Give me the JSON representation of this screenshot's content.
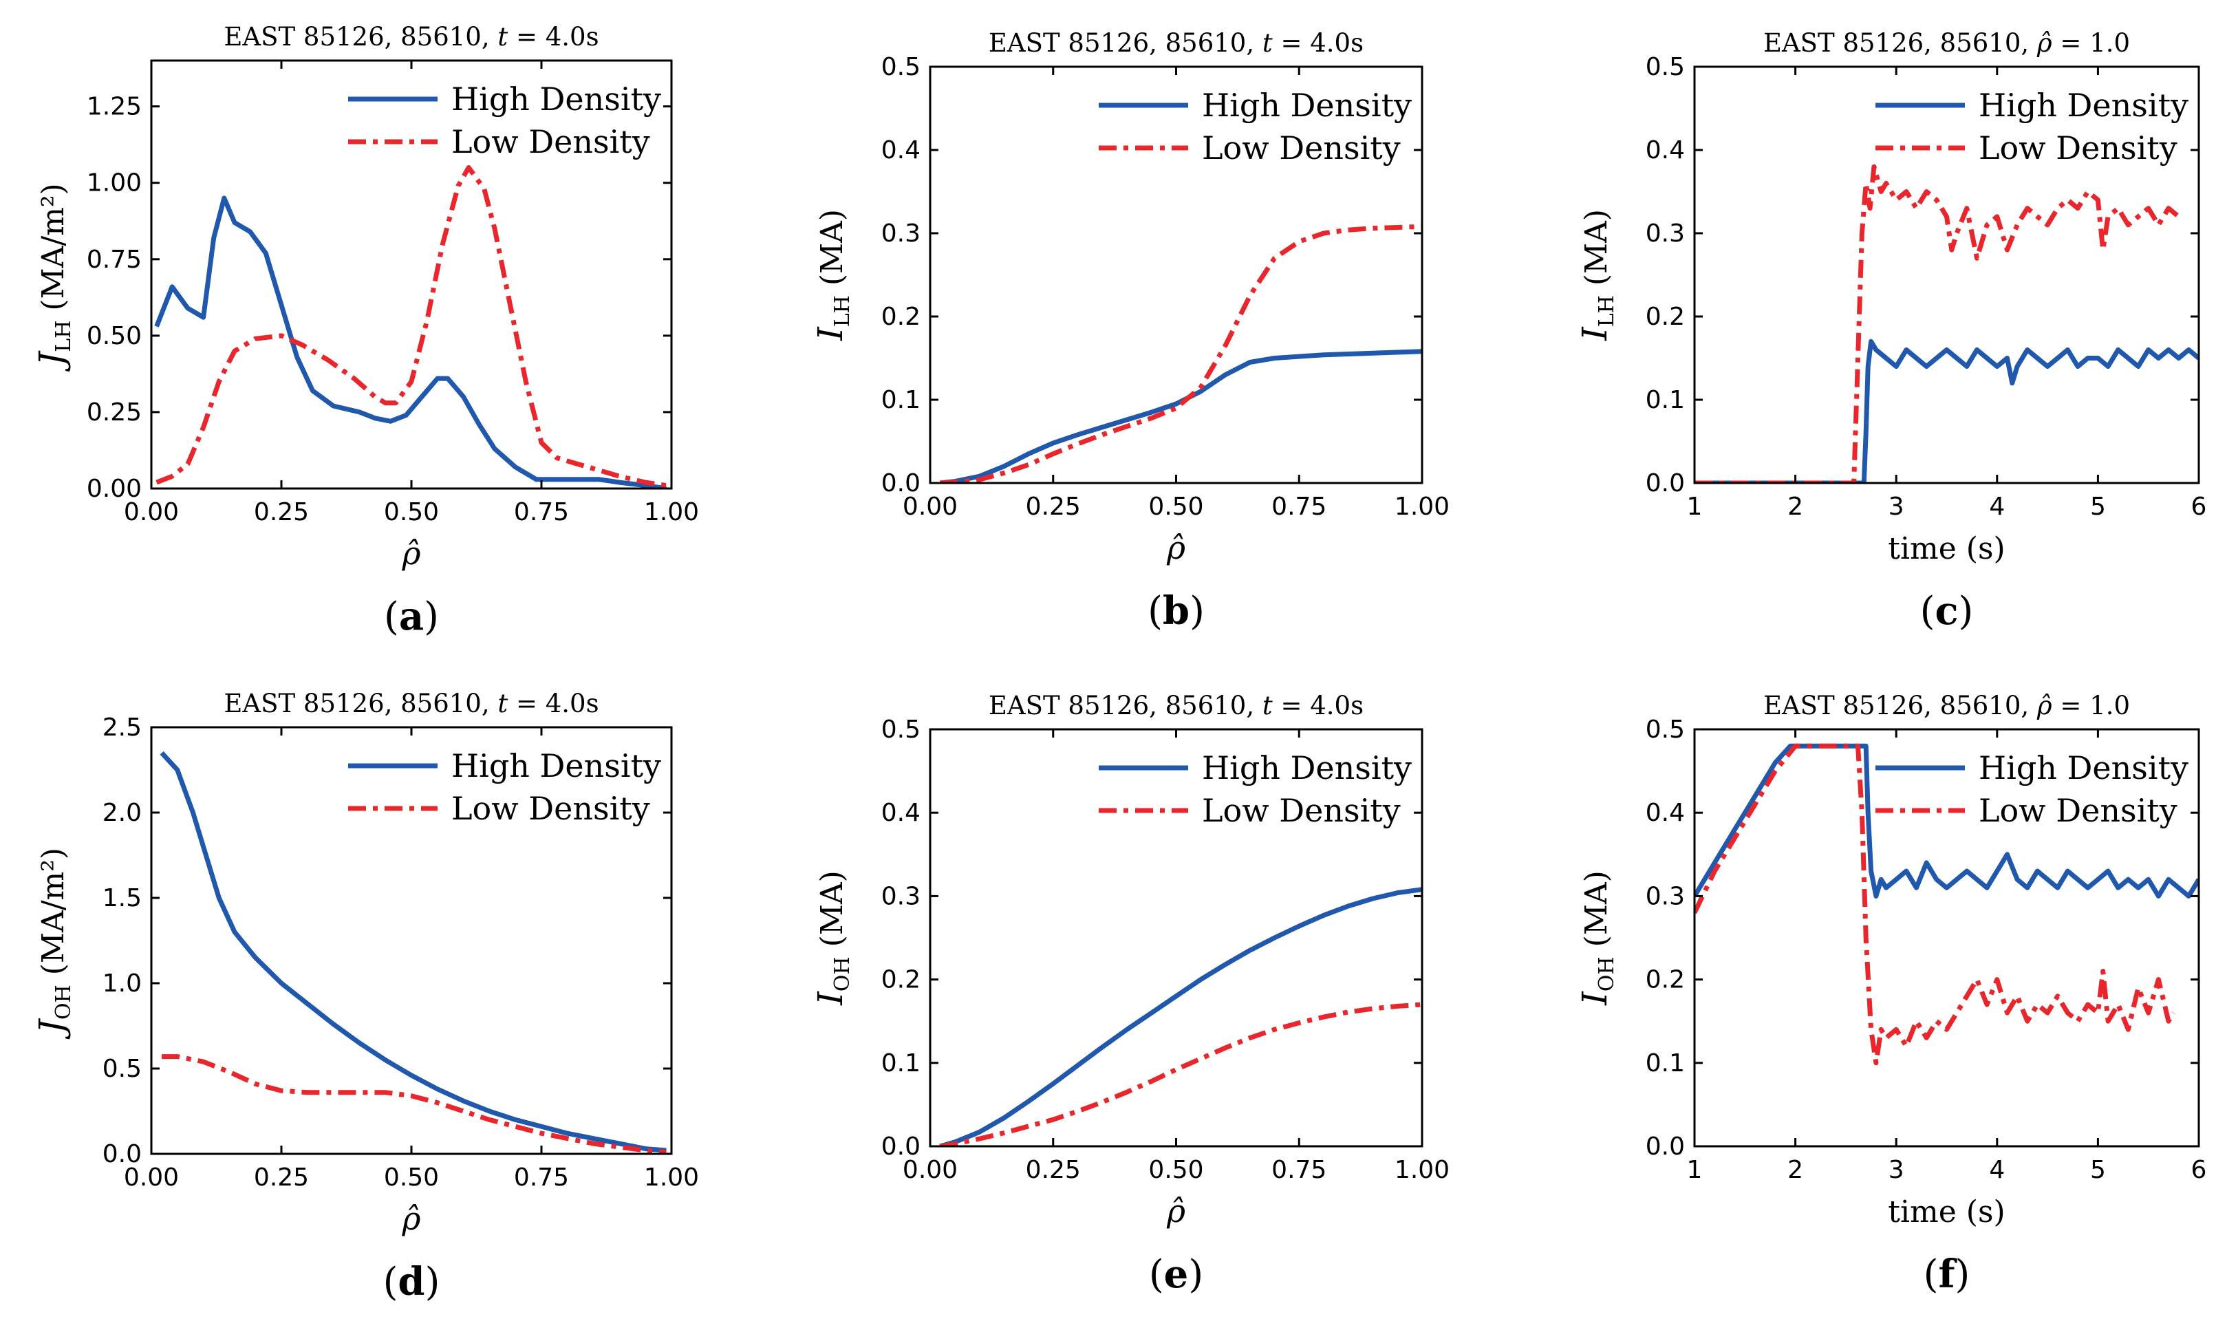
{
  "colors": {
    "high": "#1f58ac",
    "low": "#e8262c",
    "axis": "#000000"
  },
  "legend_labels": [
    "High Density",
    "Low Density"
  ],
  "chart_data": [
    {
      "id": "a",
      "type": "line",
      "panel_label": "a",
      "title_prefix": "EAST 85126, 85610, ",
      "title_var": "t",
      "title_suffix": " = 4.0s",
      "ylabel_main": "J",
      "ylabel_sub": "LH",
      "ylabel_unit": " (MA/m²)",
      "xlabel": "ρ̂",
      "xlim": [
        0,
        1
      ],
      "ylim": [
        0,
        1.4
      ],
      "xticks": [
        0,
        0.25,
        0.5,
        0.75,
        1.0
      ],
      "xtick_labels": [
        "0.00",
        "0.25",
        "0.50",
        "0.75",
        "1.00"
      ],
      "yticks": [
        0,
        0.25,
        0.5,
        0.75,
        1.0,
        1.25
      ],
      "ytick_labels": [
        "0.00",
        "0.25",
        "0.50",
        "0.75",
        "1.00",
        "1.25"
      ],
      "legend": "top-right",
      "series": [
        {
          "name": "High Density",
          "style": "solid",
          "x": [
            0.01,
            0.04,
            0.07,
            0.1,
            0.12,
            0.14,
            0.16,
            0.19,
            0.22,
            0.25,
            0.28,
            0.31,
            0.35,
            0.4,
            0.43,
            0.46,
            0.49,
            0.52,
            0.55,
            0.57,
            0.6,
            0.63,
            0.66,
            0.7,
            0.74,
            0.78,
            0.82,
            0.86,
            0.9,
            0.95,
            0.99
          ],
          "y": [
            0.53,
            0.66,
            0.59,
            0.56,
            0.82,
            0.95,
            0.87,
            0.84,
            0.77,
            0.6,
            0.43,
            0.32,
            0.27,
            0.25,
            0.23,
            0.22,
            0.24,
            0.3,
            0.36,
            0.36,
            0.3,
            0.21,
            0.13,
            0.07,
            0.03,
            0.03,
            0.03,
            0.03,
            0.02,
            0.01,
            0.0
          ]
        },
        {
          "name": "Low Density",
          "style": "dashdot",
          "x": [
            0.01,
            0.04,
            0.07,
            0.1,
            0.13,
            0.16,
            0.2,
            0.25,
            0.29,
            0.34,
            0.39,
            0.43,
            0.45,
            0.47,
            0.5,
            0.53,
            0.56,
            0.59,
            0.61,
            0.64,
            0.66,
            0.69,
            0.72,
            0.75,
            0.78,
            0.82,
            0.86,
            0.9,
            0.95,
            0.99
          ],
          "y": [
            0.02,
            0.04,
            0.08,
            0.2,
            0.35,
            0.45,
            0.49,
            0.5,
            0.47,
            0.42,
            0.36,
            0.3,
            0.28,
            0.28,
            0.35,
            0.55,
            0.8,
            0.99,
            1.05,
            0.98,
            0.85,
            0.6,
            0.35,
            0.15,
            0.1,
            0.08,
            0.06,
            0.04,
            0.02,
            0.01
          ]
        }
      ]
    },
    {
      "id": "b",
      "type": "line",
      "panel_label": "b",
      "title_prefix": "EAST 85126, 85610, ",
      "title_var": "t",
      "title_suffix": " = 4.0s",
      "ylabel_main": "I",
      "ylabel_sub": "LH",
      "ylabel_unit": " (MA)",
      "xlabel": "ρ̂",
      "xlim": [
        0,
        1
      ],
      "ylim": [
        0,
        0.5
      ],
      "xticks": [
        0,
        0.25,
        0.5,
        0.75,
        1.0
      ],
      "xtick_labels": [
        "0.00",
        "0.25",
        "0.50",
        "0.75",
        "1.00"
      ],
      "yticks": [
        0,
        0.1,
        0.2,
        0.3,
        0.4,
        0.5
      ],
      "ytick_labels": [
        "0.0",
        "0.1",
        "0.2",
        "0.3",
        "0.4",
        "0.5"
      ],
      "legend": "top-right",
      "series": [
        {
          "name": "High Density",
          "style": "solid",
          "x": [
            0.02,
            0.05,
            0.1,
            0.15,
            0.2,
            0.25,
            0.3,
            0.35,
            0.4,
            0.45,
            0.5,
            0.55,
            0.6,
            0.65,
            0.7,
            0.75,
            0.8,
            0.85,
            0.9,
            0.95,
            1.0
          ],
          "y": [
            0.0,
            0.002,
            0.008,
            0.02,
            0.035,
            0.048,
            0.058,
            0.067,
            0.076,
            0.085,
            0.095,
            0.11,
            0.13,
            0.145,
            0.15,
            0.152,
            0.154,
            0.155,
            0.156,
            0.157,
            0.158
          ]
        },
        {
          "name": "Low Density",
          "style": "dashdot",
          "x": [
            0.02,
            0.05,
            0.1,
            0.15,
            0.2,
            0.25,
            0.3,
            0.35,
            0.4,
            0.45,
            0.5,
            0.55,
            0.6,
            0.65,
            0.7,
            0.75,
            0.8,
            0.85,
            0.9,
            0.95,
            1.0
          ],
          "y": [
            0.0,
            0.001,
            0.004,
            0.012,
            0.022,
            0.035,
            0.047,
            0.058,
            0.068,
            0.078,
            0.09,
            0.115,
            0.165,
            0.225,
            0.27,
            0.29,
            0.3,
            0.304,
            0.306,
            0.307,
            0.308
          ]
        }
      ]
    },
    {
      "id": "c",
      "type": "line",
      "panel_label": "c",
      "title_prefix": "EAST 85126, 85610, ",
      "title_var": "ρ̂",
      "title_suffix": " = 1.0",
      "ylabel_main": "I",
      "ylabel_sub": "LH",
      "ylabel_unit": " (MA)",
      "xlabel": "time (s)",
      "xlim": [
        1,
        6
      ],
      "ylim": [
        0,
        0.5
      ],
      "xticks": [
        1,
        2,
        3,
        4,
        5,
        6
      ],
      "xtick_labels": [
        "1",
        "2",
        "3",
        "4",
        "5",
        "6"
      ],
      "yticks": [
        0,
        0.1,
        0.2,
        0.3,
        0.4,
        0.5
      ],
      "ytick_labels": [
        "0.0",
        "0.1",
        "0.2",
        "0.3",
        "0.4",
        "0.5"
      ],
      "legend": "top-right",
      "series": [
        {
          "name": "High Density",
          "style": "solid",
          "x": [
            1.0,
            2.68,
            2.7,
            2.72,
            2.75,
            2.8,
            2.9,
            3.0,
            3.1,
            3.2,
            3.3,
            3.4,
            3.5,
            3.6,
            3.7,
            3.8,
            3.9,
            4.0,
            4.1,
            4.15,
            4.2,
            4.3,
            4.4,
            4.5,
            4.6,
            4.7,
            4.8,
            4.9,
            5.0,
            5.1,
            5.2,
            5.3,
            5.4,
            5.5,
            5.6,
            5.7,
            5.8,
            5.9,
            6.0
          ],
          "y": [
            0.0,
            0.0,
            0.06,
            0.14,
            0.17,
            0.16,
            0.15,
            0.14,
            0.16,
            0.15,
            0.14,
            0.15,
            0.16,
            0.15,
            0.14,
            0.16,
            0.15,
            0.14,
            0.15,
            0.12,
            0.14,
            0.16,
            0.15,
            0.14,
            0.15,
            0.16,
            0.14,
            0.15,
            0.15,
            0.14,
            0.16,
            0.15,
            0.14,
            0.16,
            0.15,
            0.16,
            0.15,
            0.16,
            0.15
          ]
        },
        {
          "name": "Low Density",
          "style": "dashdot",
          "x": [
            1.0,
            2.58,
            2.62,
            2.66,
            2.7,
            2.74,
            2.78,
            2.85,
            2.9,
            3.0,
            3.1,
            3.2,
            3.3,
            3.4,
            3.5,
            3.55,
            3.6,
            3.7,
            3.8,
            3.9,
            4.0,
            4.1,
            4.2,
            4.3,
            4.4,
            4.5,
            4.6,
            4.7,
            4.8,
            4.9,
            5.0,
            5.05,
            5.1,
            5.2,
            5.3,
            5.4,
            5.5,
            5.6,
            5.7,
            5.8
          ],
          "y": [
            0.0,
            0.0,
            0.15,
            0.3,
            0.36,
            0.33,
            0.38,
            0.35,
            0.36,
            0.34,
            0.35,
            0.33,
            0.35,
            0.34,
            0.32,
            0.28,
            0.3,
            0.33,
            0.27,
            0.31,
            0.32,
            0.28,
            0.31,
            0.33,
            0.32,
            0.31,
            0.33,
            0.34,
            0.33,
            0.35,
            0.34,
            0.28,
            0.32,
            0.33,
            0.31,
            0.32,
            0.33,
            0.31,
            0.33,
            0.32
          ]
        }
      ]
    },
    {
      "id": "d",
      "type": "line",
      "panel_label": "d",
      "title_prefix": "EAST 85126, 85610, ",
      "title_var": "t",
      "title_suffix": " = 4.0s",
      "ylabel_main": "J",
      "ylabel_sub": "OH",
      "ylabel_unit": " (MA/m²)",
      "xlabel": "ρ̂",
      "xlim": [
        0,
        1
      ],
      "ylim": [
        0,
        2.5
      ],
      "xticks": [
        0,
        0.25,
        0.5,
        0.75,
        1.0
      ],
      "xtick_labels": [
        "0.00",
        "0.25",
        "0.50",
        "0.75",
        "1.00"
      ],
      "yticks": [
        0,
        0.5,
        1.0,
        1.5,
        2.0,
        2.5
      ],
      "ytick_labels": [
        "0.0",
        "0.5",
        "1.0",
        "1.5",
        "2.0",
        "2.5"
      ],
      "legend": "top-right",
      "series": [
        {
          "name": "High Density",
          "style": "solid",
          "x": [
            0.02,
            0.05,
            0.08,
            0.1,
            0.13,
            0.16,
            0.2,
            0.25,
            0.3,
            0.35,
            0.4,
            0.45,
            0.5,
            0.55,
            0.6,
            0.65,
            0.7,
            0.75,
            0.8,
            0.85,
            0.9,
            0.95,
            0.99
          ],
          "y": [
            2.35,
            2.25,
            2.0,
            1.8,
            1.5,
            1.3,
            1.15,
            1.0,
            0.88,
            0.76,
            0.65,
            0.55,
            0.46,
            0.38,
            0.31,
            0.25,
            0.2,
            0.16,
            0.12,
            0.09,
            0.06,
            0.03,
            0.02
          ]
        },
        {
          "name": "Low Density",
          "style": "dashdot",
          "x": [
            0.02,
            0.05,
            0.1,
            0.15,
            0.2,
            0.25,
            0.3,
            0.35,
            0.4,
            0.45,
            0.5,
            0.55,
            0.6,
            0.65,
            0.7,
            0.75,
            0.8,
            0.85,
            0.9,
            0.95,
            0.99
          ],
          "y": [
            0.57,
            0.57,
            0.54,
            0.48,
            0.41,
            0.37,
            0.36,
            0.36,
            0.36,
            0.36,
            0.34,
            0.3,
            0.25,
            0.2,
            0.16,
            0.12,
            0.09,
            0.06,
            0.04,
            0.02,
            0.01
          ]
        }
      ]
    },
    {
      "id": "e",
      "type": "line",
      "panel_label": "e",
      "title_prefix": "EAST 85126, 85610, ",
      "title_var": "t",
      "title_suffix": " = 4.0s",
      "ylabel_main": "I",
      "ylabel_sub": "OH",
      "ylabel_unit": " (MA)",
      "xlabel": "ρ̂",
      "xlim": [
        0,
        1
      ],
      "ylim": [
        0,
        0.5
      ],
      "xticks": [
        0,
        0.25,
        0.5,
        0.75,
        1.0
      ],
      "xtick_labels": [
        "0.00",
        "0.25",
        "0.50",
        "0.75",
        "1.00"
      ],
      "yticks": [
        0,
        0.1,
        0.2,
        0.3,
        0.4,
        0.5
      ],
      "ytick_labels": [
        "0.0",
        "0.1",
        "0.2",
        "0.3",
        "0.4",
        "0.5"
      ],
      "legend": "top-right",
      "series": [
        {
          "name": "High Density",
          "style": "solid",
          "x": [
            0.02,
            0.05,
            0.1,
            0.15,
            0.2,
            0.25,
            0.3,
            0.35,
            0.4,
            0.45,
            0.5,
            0.55,
            0.6,
            0.65,
            0.7,
            0.75,
            0.8,
            0.85,
            0.9,
            0.95,
            1.0
          ],
          "y": [
            0.0,
            0.005,
            0.017,
            0.034,
            0.054,
            0.075,
            0.097,
            0.119,
            0.14,
            0.16,
            0.18,
            0.2,
            0.218,
            0.235,
            0.25,
            0.264,
            0.277,
            0.288,
            0.297,
            0.304,
            0.308
          ]
        },
        {
          "name": "Low Density",
          "style": "dashdot",
          "x": [
            0.02,
            0.05,
            0.1,
            0.15,
            0.2,
            0.25,
            0.3,
            0.35,
            0.4,
            0.45,
            0.5,
            0.55,
            0.6,
            0.65,
            0.7,
            0.75,
            0.8,
            0.85,
            0.9,
            0.95,
            1.0
          ],
          "y": [
            0.0,
            0.003,
            0.009,
            0.016,
            0.024,
            0.032,
            0.042,
            0.053,
            0.065,
            0.078,
            0.092,
            0.105,
            0.118,
            0.13,
            0.14,
            0.148,
            0.155,
            0.161,
            0.165,
            0.168,
            0.17
          ]
        }
      ]
    },
    {
      "id": "f",
      "type": "line",
      "panel_label": "f",
      "title_prefix": "EAST 85126, 85610, ",
      "title_var": "ρ̂",
      "title_suffix": " = 1.0",
      "ylabel_main": "I",
      "ylabel_sub": "OH",
      "ylabel_unit": " (MA)",
      "xlabel": "time (s)",
      "xlim": [
        1,
        6
      ],
      "ylim": [
        0,
        0.5
      ],
      "xticks": [
        1,
        2,
        3,
        4,
        5,
        6
      ],
      "xtick_labels": [
        "1",
        "2",
        "3",
        "4",
        "5",
        "6"
      ],
      "yticks": [
        0,
        0.1,
        0.2,
        0.3,
        0.4,
        0.5
      ],
      "ytick_labels": [
        "0.0",
        "0.1",
        "0.2",
        "0.3",
        "0.4",
        "0.5"
      ],
      "legend": "top-right",
      "series": [
        {
          "name": "High Density",
          "style": "solid",
          "x": [
            1.0,
            1.2,
            1.4,
            1.6,
            1.8,
            1.95,
            2.0,
            2.3,
            2.6,
            2.7,
            2.72,
            2.75,
            2.8,
            2.85,
            2.9,
            3.0,
            3.1,
            3.2,
            3.3,
            3.4,
            3.5,
            3.6,
            3.7,
            3.8,
            3.9,
            4.0,
            4.1,
            4.2,
            4.3,
            4.4,
            4.5,
            4.6,
            4.7,
            4.8,
            4.9,
            5.0,
            5.1,
            5.2,
            5.3,
            5.4,
            5.5,
            5.6,
            5.7,
            5.8,
            5.9,
            6.0
          ],
          "y": [
            0.3,
            0.34,
            0.38,
            0.42,
            0.46,
            0.48,
            0.48,
            0.48,
            0.48,
            0.48,
            0.4,
            0.33,
            0.3,
            0.32,
            0.31,
            0.32,
            0.33,
            0.31,
            0.34,
            0.32,
            0.31,
            0.32,
            0.33,
            0.32,
            0.31,
            0.33,
            0.35,
            0.32,
            0.31,
            0.33,
            0.32,
            0.31,
            0.33,
            0.32,
            0.31,
            0.32,
            0.33,
            0.31,
            0.32,
            0.31,
            0.32,
            0.3,
            0.32,
            0.31,
            0.3,
            0.32
          ]
        },
        {
          "name": "Low Density",
          "style": "dashdot",
          "x": [
            1.0,
            1.2,
            1.4,
            1.6,
            1.8,
            2.0,
            2.2,
            2.5,
            2.62,
            2.66,
            2.7,
            2.75,
            2.8,
            2.85,
            2.9,
            3.0,
            3.1,
            3.2,
            3.3,
            3.4,
            3.5,
            3.6,
            3.7,
            3.8,
            3.9,
            4.0,
            4.1,
            4.2,
            4.3,
            4.4,
            4.5,
            4.6,
            4.7,
            4.8,
            4.9,
            5.0,
            5.05,
            5.1,
            5.2,
            5.3,
            5.4,
            5.5,
            5.6,
            5.7,
            5.75
          ],
          "y": [
            0.28,
            0.33,
            0.37,
            0.41,
            0.45,
            0.48,
            0.48,
            0.48,
            0.48,
            0.4,
            0.25,
            0.14,
            0.1,
            0.14,
            0.13,
            0.14,
            0.12,
            0.15,
            0.13,
            0.15,
            0.14,
            0.16,
            0.18,
            0.2,
            0.17,
            0.2,
            0.16,
            0.18,
            0.15,
            0.17,
            0.16,
            0.18,
            0.16,
            0.15,
            0.17,
            0.16,
            0.21,
            0.15,
            0.17,
            0.14,
            0.19,
            0.16,
            0.2,
            0.15,
            0.16
          ]
        }
      ]
    }
  ]
}
